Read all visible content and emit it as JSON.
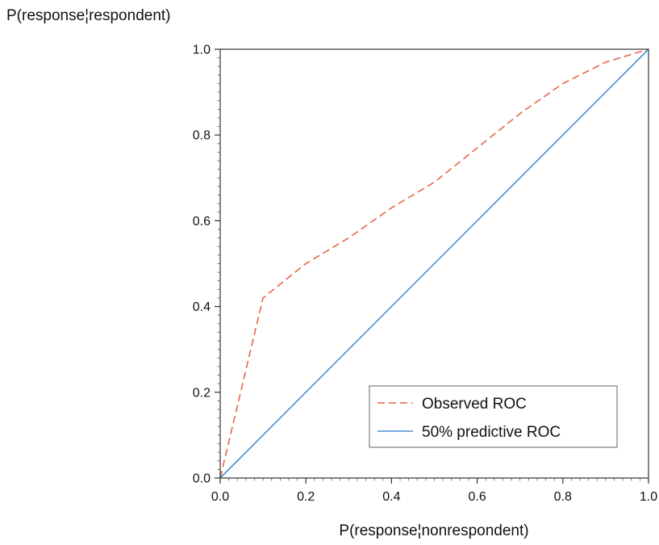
{
  "chart_data": {
    "type": "line",
    "title": "",
    "xlabel": "P(response¦nonrespondent)",
    "ylabel": "P(response¦respondent)",
    "xlim": [
      0,
      1
    ],
    "ylim": [
      0,
      1
    ],
    "xticks": [
      "0.0",
      "0.2",
      "0.4",
      "0.6",
      "0.8",
      "1.0"
    ],
    "yticks": [
      "0.0",
      "0.2",
      "0.4",
      "0.6",
      "0.8",
      "1.0"
    ],
    "grid": false,
    "legend_position": "bottom-right",
    "series": [
      {
        "name": "Observed ROC",
        "color": "#e8664a",
        "style": "dashed",
        "x": [
          0.0,
          0.1,
          0.2,
          0.3,
          0.4,
          0.5,
          0.6,
          0.7,
          0.8,
          0.9,
          1.0
        ],
        "y": [
          0.0,
          0.42,
          0.5,
          0.56,
          0.63,
          0.69,
          0.77,
          0.85,
          0.92,
          0.97,
          1.0
        ]
      },
      {
        "name": "50% predictive ROC",
        "color": "#4a90d0",
        "style": "solid",
        "x": [
          0.0,
          1.0
        ],
        "y": [
          0.0,
          1.0
        ]
      }
    ]
  }
}
